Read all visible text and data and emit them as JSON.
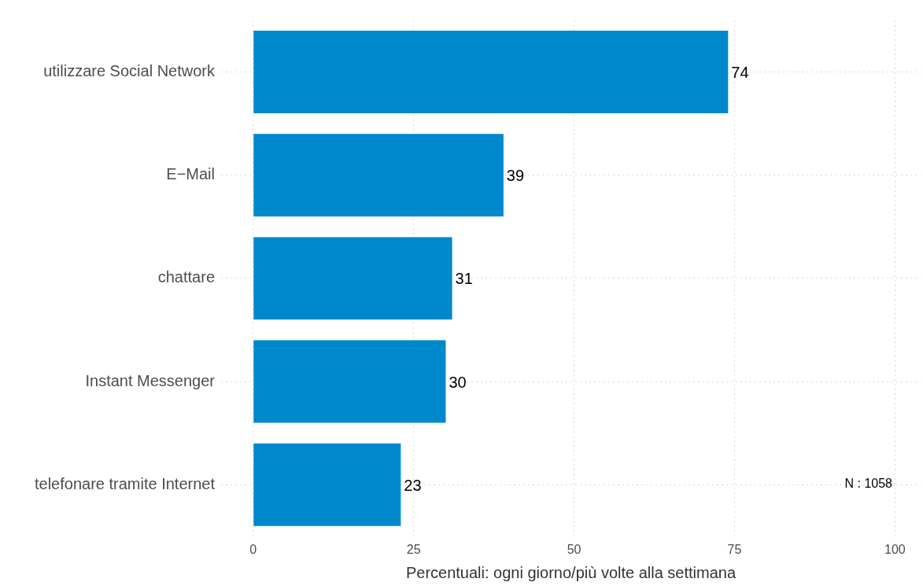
{
  "chart_data": {
    "type": "bar",
    "orientation": "horizontal",
    "categories": [
      "utilizzare Social Network",
      "E−Mail",
      "chattare",
      "Instant Messenger",
      "telefonare tramite Internet"
    ],
    "values": [
      74,
      39,
      31,
      30,
      23
    ],
    "color": "#0088cc",
    "xlim": [
      -5,
      104
    ],
    "xticks": [
      0,
      25,
      50,
      75,
      100
    ],
    "xlabel": "Percentuali: ogni giorno/più volte alla settimana",
    "data_labels": true,
    "grid": true,
    "legend": false,
    "annotations": [
      "N : 1058"
    ]
  }
}
